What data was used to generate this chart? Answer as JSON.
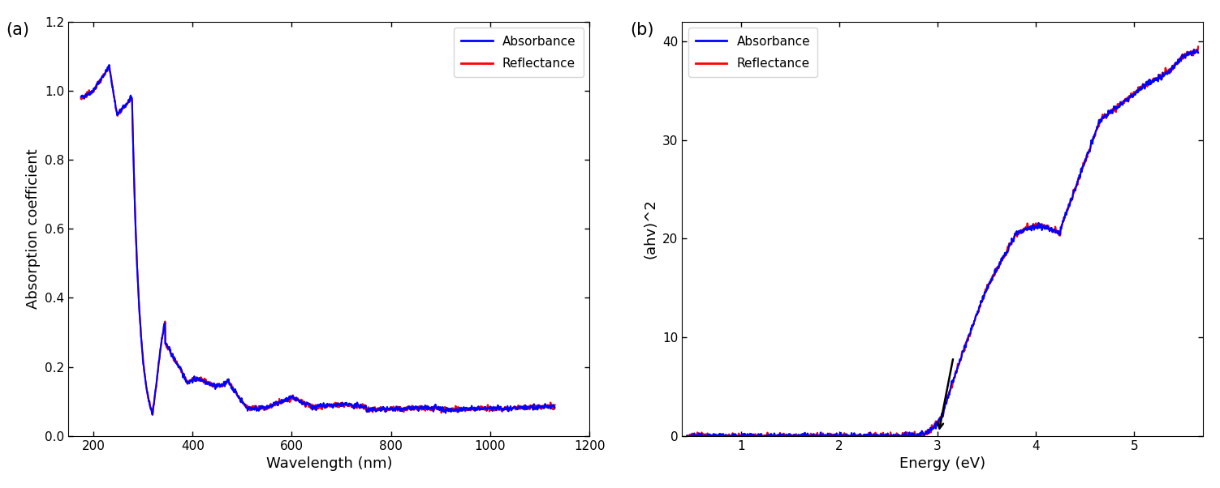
{
  "panel_a": {
    "xlabel": "Wavelength (nm)",
    "ylabel": "Absorption coefficient",
    "xlim": [
      150,
      1200
    ],
    "ylim": [
      0.0,
      1.2
    ],
    "xticks": [
      200,
      400,
      600,
      800,
      1000,
      1200
    ],
    "yticks": [
      0.0,
      0.2,
      0.4,
      0.6,
      0.8,
      1.0,
      1.2
    ],
    "label": "(a)"
  },
  "panel_b": {
    "xlabel": "Energy (eV)",
    "ylabel": "(ahv)^2",
    "xlim": [
      0.4,
      5.7
    ],
    "ylim": [
      0,
      42
    ],
    "xticks": [
      1,
      2,
      3,
      4,
      5
    ],
    "yticks": [
      0,
      10,
      20,
      30,
      40
    ],
    "label": "(b)"
  },
  "legend_absorbance_color": "#0000FF",
  "legend_reflectance_color": "#FF0000",
  "line_width": 1.5,
  "bg_color": "#FFFFFF"
}
